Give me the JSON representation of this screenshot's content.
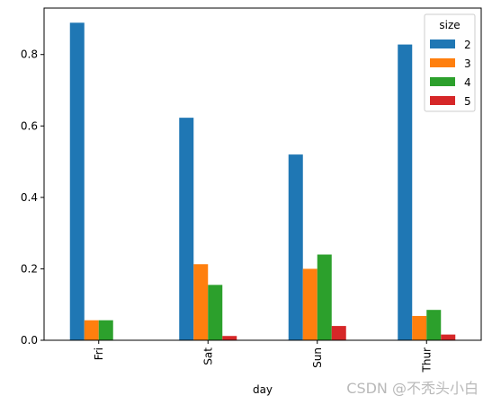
{
  "chart_data": {
    "type": "bar",
    "categories": [
      "Fri",
      "Sat",
      "Sun",
      "Thur"
    ],
    "xlabel": "day",
    "ylabel": "",
    "ylim": [
      0,
      0.93
    ],
    "yticks": [
      "0.0",
      "0.2",
      "0.4",
      "0.6",
      "0.8"
    ],
    "yticks_values": [
      0.0,
      0.2,
      0.4,
      0.6,
      0.8
    ],
    "legend": {
      "title": "size",
      "placement": "top-right"
    },
    "grid": false,
    "series": [
      {
        "name": "2",
        "color": "#1f77b4",
        "values": [
          0.889,
          0.623,
          0.52,
          0.828
        ]
      },
      {
        "name": "3",
        "color": "#ff7f0e",
        "values": [
          0.056,
          0.213,
          0.2,
          0.068
        ]
      },
      {
        "name": "4",
        "color": "#2ca02c",
        "values": [
          0.056,
          0.155,
          0.24,
          0.085
        ]
      },
      {
        "name": "5",
        "color": "#d62728",
        "values": [
          0.0,
          0.012,
          0.04,
          0.016
        ]
      }
    ]
  },
  "watermark": "CSDN @不秃头小白"
}
